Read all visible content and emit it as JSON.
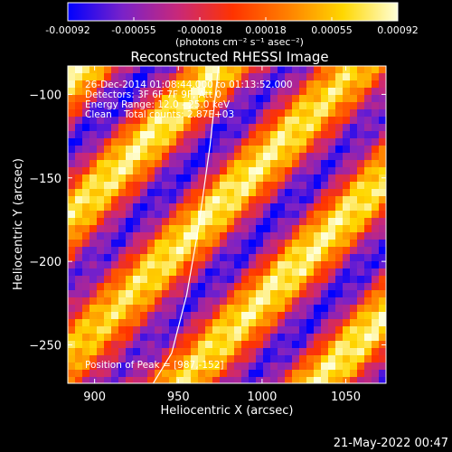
{
  "chart_data": {
    "type": "heatmap",
    "title": "Reconstructed RHESSI Image",
    "xlabel": "Heliocentric X (arcsec)",
    "ylabel": "Heliocentric Y (arcsec)",
    "xlim": [
      884,
      1074
    ],
    "ylim": [
      -273,
      -83
    ],
    "xticks": [
      900,
      950,
      1000,
      1050
    ],
    "yticks": [
      -100,
      -150,
      -200,
      -250
    ],
    "colorbar": {
      "range": [
        -0.00092,
        0.00092
      ],
      "ticks": [
        "-0.00092",
        "-0.00055",
        "-0.00018",
        "0.00018",
        "0.00055",
        "0.00092"
      ],
      "label": "(photons cm⁻² s⁻¹ asec⁻²)",
      "colormap": [
        "#0000ff",
        "#7a22c8",
        "#c8287a",
        "#ff3300",
        "#ff8000",
        "#ffd700",
        "#ffffd8"
      ]
    },
    "annotations": [
      "26-Dec-2014 01:08:44.000 to 01:13:52.000",
      "Detectors: 3F 6F 7F 9F, Att 0",
      "Energy Range: 12.0 - 25.0 keV",
      "Clean    Total counts: 2.87E+03"
    ],
    "peak": {
      "label": "Position of Peak = [987,-152]",
      "x": 987,
      "y": -152
    },
    "limb_curve": {
      "x": [
        974,
        969,
        962,
        955,
        946,
        935
      ],
      "y": [
        -83,
        -130,
        -180,
        -220,
        -255,
        -273
      ]
    },
    "stripes": {
      "angle_note": "diagonal fringe pattern",
      "bright_centers_offset_arcsec": [
        -100,
        0,
        100
      ],
      "peak_value": 0.00092,
      "trough_value": -0.00092
    }
  },
  "timestamp": "21-May-2022 00:47"
}
